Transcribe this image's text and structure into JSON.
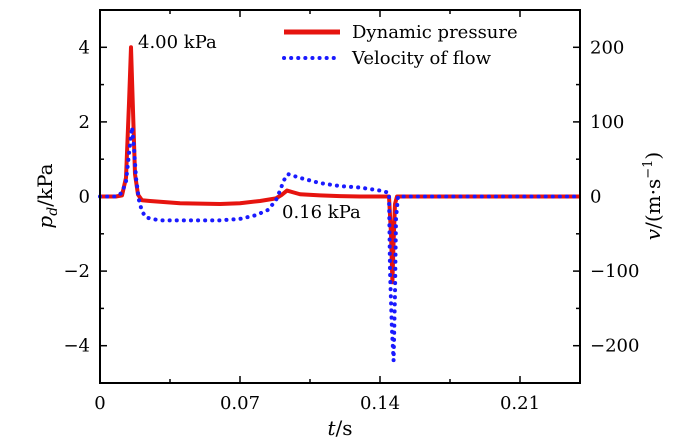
{
  "chart_data": {
    "type": "line",
    "x_axis": {
      "label": "t/s",
      "ticks": [
        0,
        0.07,
        0.14,
        0.21
      ],
      "tick_labels": [
        "0",
        "0.07",
        "0.14",
        "0.21"
      ],
      "range": [
        0,
        0.24
      ]
    },
    "y_left": {
      "label": "pd/kPa",
      "ticks": [
        -4,
        -2,
        0,
        2,
        4
      ],
      "tick_labels": [
        "−4",
        "−2",
        "0",
        "2",
        "4"
      ],
      "range": [
        -5,
        5
      ]
    },
    "y_right": {
      "label": "v/(m·s⁻¹)",
      "ticks": [
        -200,
        -100,
        0,
        100,
        200
      ],
      "tick_labels": [
        "−200",
        "−100",
        "0",
        "100",
        "200"
      ],
      "range": [
        -250,
        250
      ]
    },
    "legend": {
      "placement": "top-right"
    },
    "annotations": [
      {
        "text": "4.00 kPa"
      },
      {
        "text": "0.16 kPa"
      }
    ],
    "series": [
      {
        "name": "Dynamic pressure",
        "axis": "left",
        "style": "solid",
        "color": "#e6140f",
        "x": [
          0,
          0.008,
          0.011,
          0.013,
          0.0145,
          0.0155,
          0.0165,
          0.0175,
          0.019,
          0.021,
          0.025,
          0.04,
          0.06,
          0.07,
          0.08,
          0.088,
          0.091,
          0.0935,
          0.096,
          0.1,
          0.11,
          0.12,
          0.13,
          0.14,
          0.1445,
          0.1455,
          0.1462,
          0.1468,
          0.1475,
          0.1485,
          0.155,
          0.17,
          0.19,
          0.21,
          0.23,
          0.24
        ],
        "y": [
          0,
          0,
          0.03,
          0.5,
          2.5,
          4.0,
          2.3,
          0.6,
          0.05,
          -0.1,
          -0.12,
          -0.18,
          -0.2,
          -0.18,
          -0.12,
          -0.05,
          0.05,
          0.16,
          0.12,
          0.06,
          0.03,
          0.01,
          0,
          0,
          0,
          -1.0,
          -2.3,
          -1.2,
          -0.2,
          0,
          0,
          0,
          0,
          0,
          0,
          0
        ]
      },
      {
        "name": "Velocity of flow",
        "axis": "right",
        "style": "dotted",
        "color": "#1a1aff",
        "x": [
          0,
          0.008,
          0.011,
          0.013,
          0.015,
          0.016,
          0.017,
          0.018,
          0.0195,
          0.021,
          0.023,
          0.026,
          0.03,
          0.04,
          0.05,
          0.06,
          0.07,
          0.078,
          0.084,
          0.088,
          0.09,
          0.092,
          0.094,
          0.1,
          0.11,
          0.12,
          0.13,
          0.14,
          0.1445,
          0.145,
          0.146,
          0.1468,
          0.1475,
          0.148,
          0.149,
          0.152,
          0.16,
          0.18,
          0.2,
          0.22,
          0.24
        ],
        "y": [
          0,
          0,
          5,
          20,
          70,
          93,
          65,
          25,
          -5,
          -20,
          -28,
          -30,
          -32,
          -32,
          -32,
          -32,
          -30,
          -25,
          -18,
          -5,
          8,
          22,
          30,
          25,
          18,
          14,
          12,
          8,
          5,
          -100,
          -180,
          -220,
          -130,
          -30,
          0,
          0,
          0,
          0,
          0,
          0,
          0
        ]
      }
    ]
  }
}
